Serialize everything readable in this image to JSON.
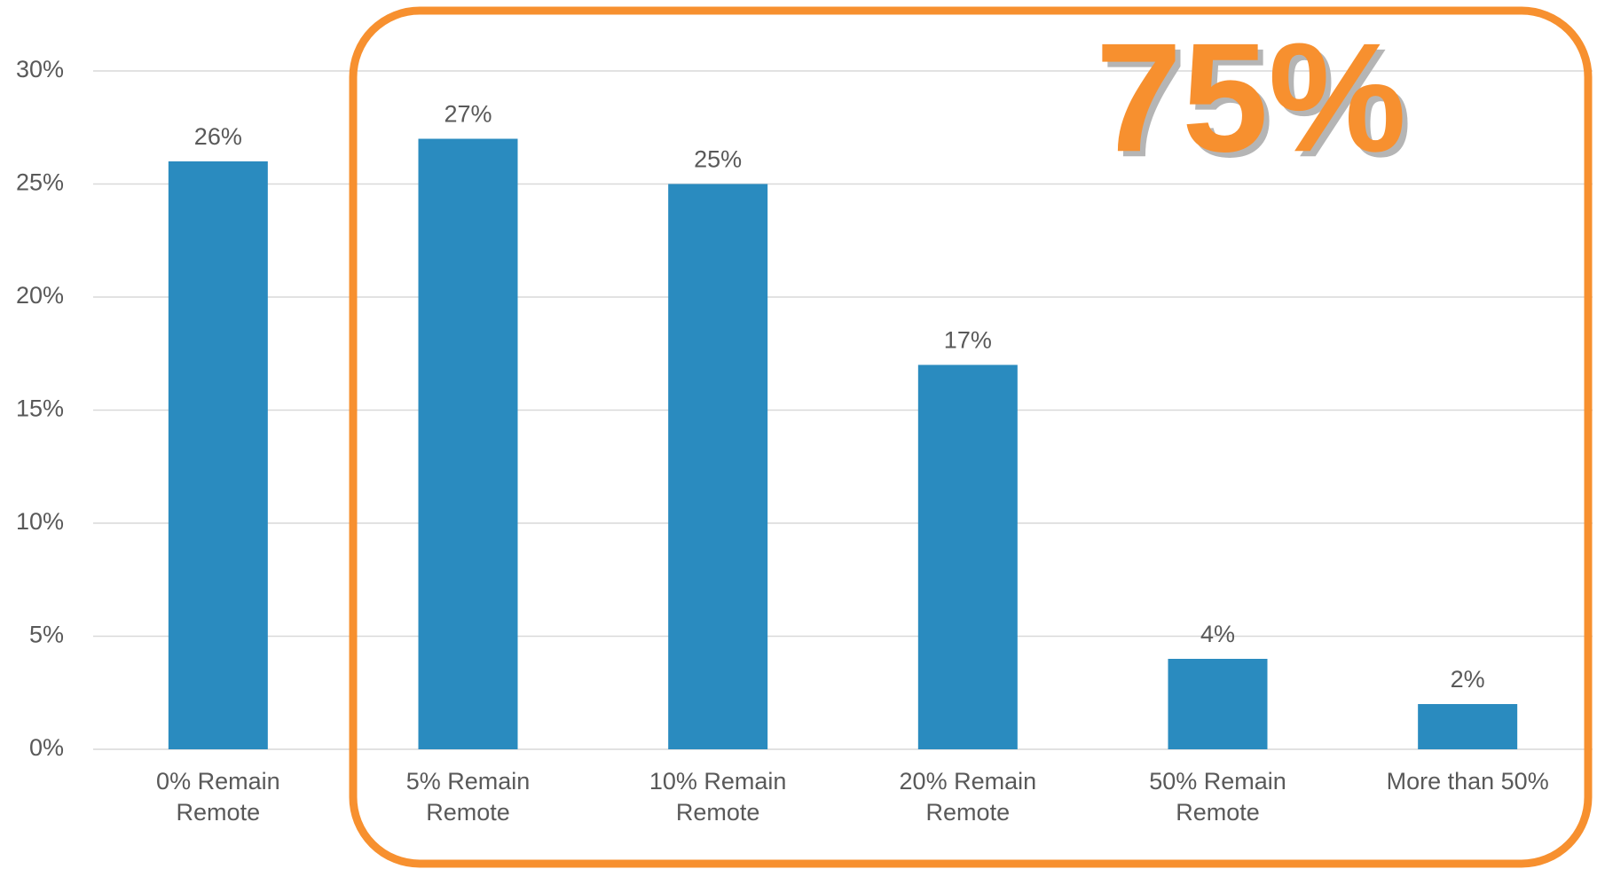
{
  "chart_data": {
    "type": "bar",
    "categories": [
      "0% Remain Remote",
      "5% Remain Remote",
      "10% Remain Remote",
      "20% Remain Remote",
      "50% Remain Remote",
      "More than 50%"
    ],
    "values": [
      26,
      27,
      25,
      17,
      4,
      2
    ],
    "value_labels": [
      "26%",
      "27%",
      "25%",
      "17%",
      "4%",
      "2%"
    ],
    "color": "#2a8bbf",
    "ylim": [
      0,
      30
    ],
    "yticks": [
      {
        "value": 0,
        "label": "0%"
      },
      {
        "value": 5,
        "label": "5%"
      },
      {
        "value": 10,
        "label": "10%"
      },
      {
        "value": 15,
        "label": "15%"
      },
      {
        "value": 20,
        "label": "20%"
      },
      {
        "value": 25,
        "label": "25%"
      },
      {
        "value": 30,
        "label": "30%"
      }
    ],
    "grid": true,
    "annotation": "75%",
    "annotation_color": "#f7902f"
  }
}
